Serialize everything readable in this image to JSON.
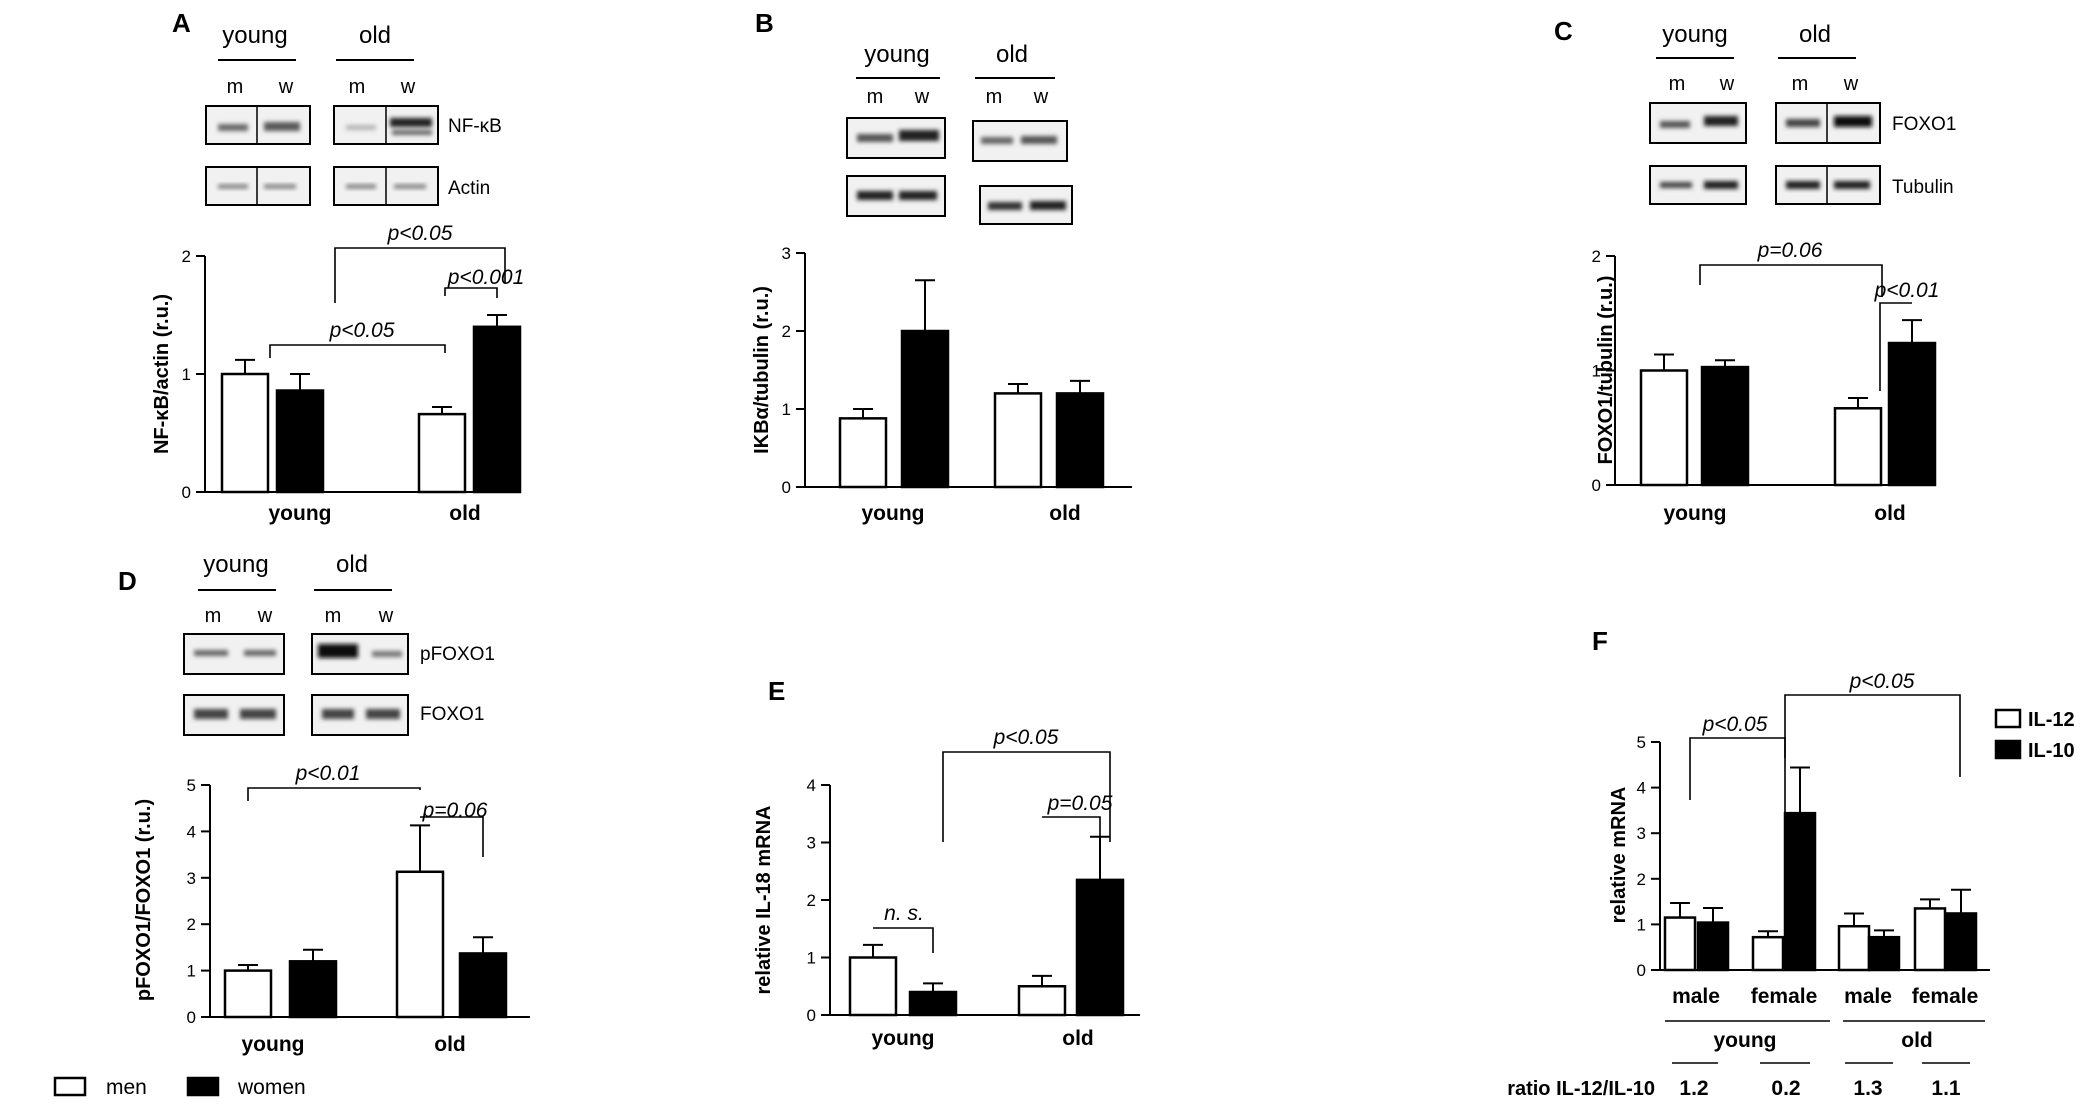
{
  "colors": {
    "men": "#ffffff",
    "women": "#000000",
    "il12": "#ffffff",
    "il10": "#000000",
    "axis": "#000000"
  },
  "legend": {
    "men": "men",
    "women": "women"
  },
  "chart_data": [
    {
      "panel": "A",
      "type": "bar",
      "blot": {
        "groups": [
          "young",
          "old"
        ],
        "lanes": [
          "m",
          "w"
        ],
        "bands": [
          "NF-κB",
          "Actin"
        ]
      },
      "categories": [
        "young",
        "old"
      ],
      "series": [
        {
          "name": "men",
          "values": [
            1.0,
            0.66
          ],
          "errors": [
            0.12,
            0.06
          ]
        },
        {
          "name": "women",
          "values": [
            0.86,
            1.4
          ],
          "errors": [
            0.14,
            0.1
          ]
        }
      ],
      "ylabel": "NF-κB/actin  (r.u.)",
      "ylim": [
        0,
        2
      ],
      "yticks": [
        0,
        1,
        2
      ],
      "annotations": [
        "p<0.05",
        "p<0.001",
        "p<0.05"
      ]
    },
    {
      "panel": "B",
      "type": "bar",
      "blot": {
        "groups": [
          "young",
          "old"
        ],
        "lanes": [
          "m",
          "w"
        ],
        "bands": [
          "",
          ""
        ]
      },
      "categories": [
        "young",
        "old"
      ],
      "series": [
        {
          "name": "men",
          "values": [
            0.88,
            1.2
          ],
          "errors": [
            0.12,
            0.12
          ]
        },
        {
          "name": "women",
          "values": [
            2.0,
            1.2
          ],
          "errors": [
            0.65,
            0.16
          ]
        }
      ],
      "ylabel": "IKBα/tubulin  (r.u.)",
      "ylim": [
        0,
        3
      ],
      "yticks": [
        0,
        1,
        2,
        3
      ],
      "annotations": []
    },
    {
      "panel": "C",
      "type": "bar",
      "blot": {
        "groups": [
          "young",
          "old"
        ],
        "lanes": [
          "m",
          "w"
        ],
        "bands": [
          "FOXO1",
          "Tubulin"
        ]
      },
      "categories": [
        "young",
        "old"
      ],
      "series": [
        {
          "name": "men",
          "values": [
            1.0,
            0.67
          ],
          "errors": [
            0.14,
            0.09
          ]
        },
        {
          "name": "women",
          "values": [
            1.03,
            1.24
          ],
          "errors": [
            0.06,
            0.2
          ]
        }
      ],
      "ylabel": "FOXO1/tubulin  (r.u.)",
      "ylim": [
        0,
        2
      ],
      "yticks": [
        0,
        1,
        2
      ],
      "annotations": [
        "p=0.06",
        "p<0.01"
      ]
    },
    {
      "panel": "D",
      "type": "bar",
      "blot": {
        "groups": [
          "young",
          "old"
        ],
        "lanes": [
          "m",
          "w"
        ],
        "bands": [
          "pFOXO1",
          "FOXO1"
        ]
      },
      "categories": [
        "young",
        "old"
      ],
      "series": [
        {
          "name": "men",
          "values": [
            1.0,
            3.13
          ],
          "errors": [
            0.12,
            1.0
          ]
        },
        {
          "name": "women",
          "values": [
            1.2,
            1.37
          ],
          "errors": [
            0.25,
            0.35
          ]
        }
      ],
      "ylabel": "pFOXO1/FOXO1  (r.u.)",
      "ylim": [
        0,
        5
      ],
      "yticks": [
        0,
        1,
        2,
        3,
        4,
        5
      ],
      "annotations": [
        "p<0.01",
        "p=0.06"
      ]
    },
    {
      "panel": "E",
      "type": "bar",
      "categories": [
        "young",
        "old"
      ],
      "series": [
        {
          "name": "men",
          "values": [
            1.0,
            0.5
          ],
          "errors": [
            0.22,
            0.18
          ]
        },
        {
          "name": "women",
          "values": [
            0.4,
            2.35
          ],
          "errors": [
            0.15,
            0.75
          ]
        }
      ],
      "ylabel": "relative IL-18 mRNA",
      "ylim": [
        0,
        4
      ],
      "yticks": [
        0,
        1,
        2,
        3,
        4
      ],
      "annotations": [
        "p<0.05",
        "p=0.05",
        "n. s."
      ]
    },
    {
      "panel": "F",
      "type": "bar",
      "categories": [
        "male",
        "female",
        "male",
        "female"
      ],
      "groups": [
        "young",
        "old"
      ],
      "series": [
        {
          "name": "IL-12",
          "values": [
            1.15,
            0.72,
            0.96,
            1.35
          ],
          "errors": [
            0.32,
            0.13,
            0.28,
            0.2
          ]
        },
        {
          "name": "IL-10",
          "values": [
            1.04,
            3.44,
            0.72,
            1.24
          ],
          "errors": [
            0.32,
            1.0,
            0.15,
            0.52
          ]
        }
      ],
      "ylabel": "relative  mRNA",
      "ylim": [
        0,
        5
      ],
      "yticks": [
        0,
        1,
        2,
        3,
        4,
        5
      ],
      "annotations": [
        "p<0.05",
        "p<0.05"
      ],
      "ratio_label": "ratio IL-12/IL-10",
      "ratios": [
        "1.2",
        "0.2",
        "1.3",
        "1.1"
      ]
    }
  ]
}
